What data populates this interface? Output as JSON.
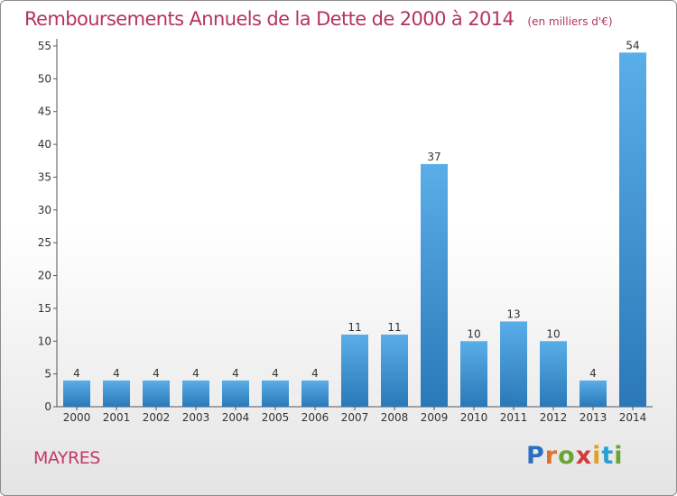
{
  "header": {
    "title": "Remboursements Annuels de la Dette de 2000 à 2014",
    "unit": "(en milliers d'€)"
  },
  "commune": "MAYRES",
  "brand": {
    "text": "Proxiti",
    "letters": [
      "P",
      "r",
      "o",
      "x",
      "i",
      "t",
      "i"
    ],
    "letter_colors": [
      "#2a6fc2",
      "#e0702a",
      "#6aa533",
      "#d23b3b",
      "#e0a02a",
      "#2a9fd2",
      "#6aa533"
    ]
  },
  "colors": {
    "bar_light": "#5aaee8",
    "bar_dark": "#2a78b8",
    "title": "#b5345c",
    "text": "#333333"
  },
  "chart_data": {
    "type": "bar",
    "title": "Remboursements Annuels de la Dette de 2000 à 2014",
    "subtitle": "(en milliers d'€)",
    "categories": [
      "2000",
      "2001",
      "2002",
      "2003",
      "2004",
      "2005",
      "2006",
      "2007",
      "2008",
      "2009",
      "2010",
      "2011",
      "2012",
      "2013",
      "2014"
    ],
    "values": [
      4,
      4,
      4,
      4,
      4,
      4,
      4,
      11,
      11,
      37,
      10,
      13,
      10,
      4,
      54
    ],
    "ylim": [
      0,
      55
    ],
    "yticks": [
      0,
      5,
      10,
      15,
      20,
      25,
      30,
      35,
      40,
      45,
      50,
      55
    ],
    "grid": false,
    "legend": "none"
  }
}
